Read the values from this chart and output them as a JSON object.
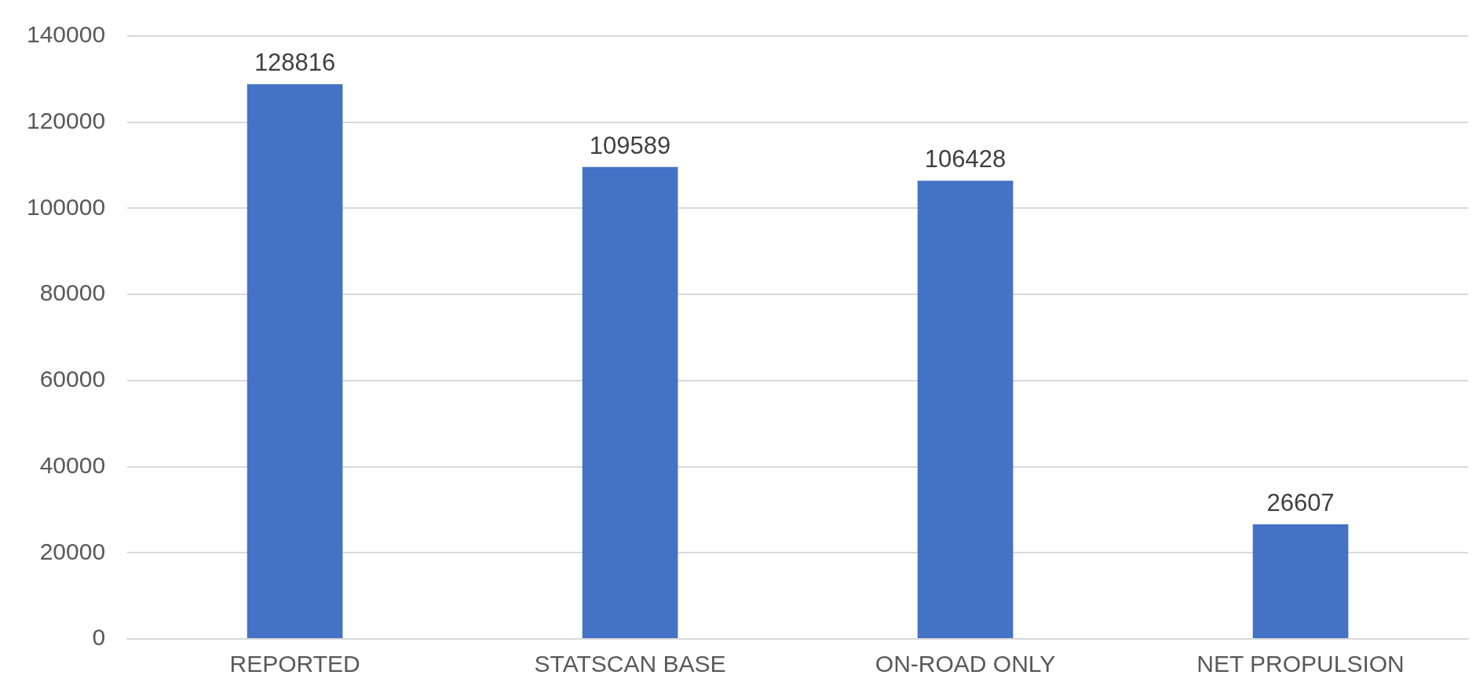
{
  "chart_data": {
    "type": "bar",
    "categories": [
      "REPORTED",
      "STATSCAN BASE",
      "ON-ROAD ONLY",
      "NET PROPULSION"
    ],
    "values": [
      128816,
      109589,
      106428,
      26607
    ],
    "color": "#4472c4",
    "ylim": [
      0,
      140000
    ],
    "yticks": [
      0,
      20000,
      40000,
      60000,
      80000,
      100000,
      120000,
      140000
    ],
    "grid": "y",
    "legend": false,
    "data_labels": true
  }
}
